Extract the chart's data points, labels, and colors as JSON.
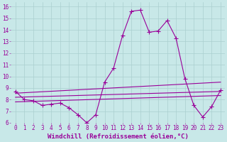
{
  "xlabel": "Windchill (Refroidissement éolien,°C)",
  "ylabel": "",
  "background_color": "#c8e8e8",
  "line_color": "#990099",
  "xlim": [
    -0.5,
    23.5
  ],
  "ylim": [
    6,
    16.4
  ],
  "xticks": [
    0,
    1,
    2,
    3,
    4,
    5,
    6,
    7,
    8,
    9,
    10,
    11,
    12,
    13,
    14,
    15,
    16,
    17,
    18,
    19,
    20,
    21,
    22,
    23
  ],
  "yticks": [
    6,
    7,
    8,
    9,
    10,
    11,
    12,
    13,
    14,
    15,
    16
  ],
  "series": {
    "line1": {
      "x": [
        0,
        1,
        2,
        3,
        4,
        5,
        6,
        7,
        8,
        9,
        10,
        11,
        12,
        13,
        14,
        15,
        16,
        17,
        18,
        19,
        20,
        21,
        22,
        23
      ],
      "y": [
        8.7,
        8.0,
        7.9,
        7.5,
        7.6,
        7.7,
        7.3,
        6.7,
        6.0,
        6.7,
        9.5,
        10.7,
        13.5,
        15.6,
        15.7,
        13.8,
        13.9,
        14.8,
        13.3,
        9.8,
        7.5,
        6.5,
        7.4,
        8.8
      ]
    },
    "line2": {
      "x": [
        0,
        23
      ],
      "y": [
        8.2,
        8.7
      ]
    },
    "line3": {
      "x": [
        0,
        23
      ],
      "y": [
        7.8,
        8.35
      ]
    },
    "line4": {
      "x": [
        0,
        23
      ],
      "y": [
        8.55,
        9.5
      ]
    }
  },
  "marker": "+",
  "markersize": 4,
  "linewidth": 0.8,
  "grid_color": "#aacfcf",
  "tick_color": "#990099",
  "tick_fontsize": 5.5,
  "xlabel_fontsize": 6.5
}
